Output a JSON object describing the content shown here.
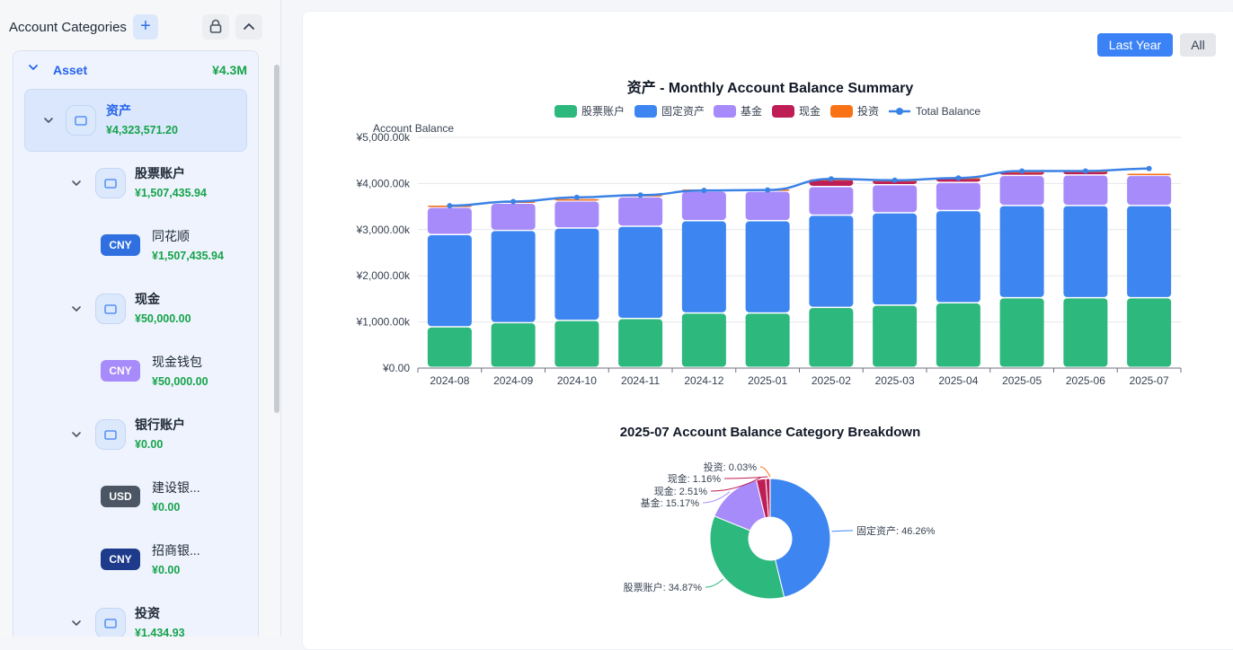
{
  "sidebar": {
    "title": "Account Categories",
    "add_label": "+",
    "category": {
      "name": "Asset",
      "total": "¥4.3M"
    },
    "tree": [
      {
        "kind": "group",
        "name": "资产",
        "amount": "¥4,323,571.20",
        "level": 0
      },
      {
        "kind": "group",
        "name": "股票账户",
        "amount": "¥1,507,435.94",
        "level": 1
      },
      {
        "kind": "account",
        "currency": "CNY",
        "currency_color": "#2f6fe0",
        "name": "同花顺",
        "amount": "¥1,507,435.94"
      },
      {
        "kind": "group",
        "name": "现金",
        "amount": "¥50,000.00",
        "level": 1
      },
      {
        "kind": "account",
        "currency": "CNY",
        "currency_color": "#a78bfa",
        "name": "现金钱包",
        "amount": "¥50,000.00"
      },
      {
        "kind": "group",
        "name": "银行账户",
        "amount": "¥0.00",
        "level": 1
      },
      {
        "kind": "account",
        "currency": "USD",
        "currency_color": "#4b5563",
        "name": "建设银...",
        "amount": "¥0.00"
      },
      {
        "kind": "account",
        "currency": "CNY",
        "currency_color": "#1e3a8a",
        "name": "招商银...",
        "amount": "¥0.00"
      },
      {
        "kind": "group",
        "name": "投资",
        "amount": "¥1,434.93",
        "level": 1
      }
    ]
  },
  "toolbar": {
    "last_year_label": "Last Year",
    "all_label": "All"
  },
  "bar_chart": {
    "title": "资产 - Monthly Account Balance Summary",
    "ylabel": "Account Balance",
    "legend": [
      {
        "name": "股票账户",
        "color": "#2db87d"
      },
      {
        "name": "固定资产",
        "color": "#3d86f2"
      },
      {
        "name": "基金",
        "color": "#a78bfa"
      },
      {
        "name": "现金",
        "color": "#be1e55"
      },
      {
        "name": "投资",
        "color": "#f97316"
      },
      {
        "name": "Total Balance",
        "color": "#3b82e6"
      }
    ]
  },
  "pie_chart": {
    "title": "2025-07 Account Balance Category Breakdown",
    "labels": [
      {
        "text": "固定资产: 46.26%"
      },
      {
        "text": "股票账户: 34.87%"
      },
      {
        "text": "基金: 15.17%"
      },
      {
        "text": "现金: 2.51%"
      },
      {
        "text": "现金: 1.16%"
      },
      {
        "text": "投资: 0.03%"
      }
    ]
  },
  "chart_data": [
    {
      "type": "bar",
      "title": "资产 - Monthly Account Balance Summary",
      "ylabel": "Account Balance",
      "ylim": [
        0,
        5000
      ],
      "y_unit": "k",
      "yticks": [
        "¥0.00",
        "¥1,000.00k",
        "¥2,000.00k",
        "¥3,000.00k",
        "¥4,000.00k",
        "¥5,000.00k"
      ],
      "categories": [
        "2024-08",
        "2024-09",
        "2024-10",
        "2024-11",
        "2024-12",
        "2025-01",
        "2025-02",
        "2025-03",
        "2025-04",
        "2025-05",
        "2025-06",
        "2025-07"
      ],
      "series": [
        {
          "name": "股票账户",
          "values": [
            880,
            970,
            1020,
            1060,
            1180,
            1180,
            1300,
            1350,
            1400,
            1510,
            1510,
            1510
          ]
        },
        {
          "name": "固定资产",
          "values": [
            2000,
            2000,
            2000,
            2000,
            2000,
            2000,
            2000,
            2000,
            2000,
            2000,
            2000,
            2000
          ]
        },
        {
          "name": "基金",
          "values": [
            590,
            590,
            590,
            640,
            640,
            640,
            620,
            610,
            610,
            650,
            660,
            650
          ]
        },
        {
          "name": "现金",
          "values": [
            50,
            50,
            50,
            50,
            50,
            50,
            170,
            110,
            110,
            100,
            100,
            50
          ]
        },
        {
          "name": "投资",
          "values": [
            1,
            1,
            1,
            1,
            1,
            1,
            1,
            1,
            1,
            1,
            1,
            1
          ]
        },
        {
          "name": "Total Balance",
          "type": "line",
          "values": [
            3520,
            3610,
            3700,
            3750,
            3850,
            3860,
            4100,
            4070,
            4120,
            4270,
            4270,
            4323
          ]
        }
      ],
      "grid": true,
      "legend": "top"
    },
    {
      "type": "pie",
      "title": "2025-07 Account Balance Category Breakdown",
      "slices": [
        {
          "name": "固定资产",
          "value": 46.26,
          "color": "#3d86f2"
        },
        {
          "name": "股票账户",
          "value": 34.87,
          "color": "#2db87d"
        },
        {
          "name": "基金",
          "value": 15.17,
          "color": "#a78bfa"
        },
        {
          "name": "现金",
          "value": 2.51,
          "color": "#be1e55"
        },
        {
          "name": "现金",
          "value": 1.16,
          "color": "#be1e55"
        },
        {
          "name": "投资",
          "value": 0.03,
          "color": "#f97316"
        }
      ]
    }
  ]
}
